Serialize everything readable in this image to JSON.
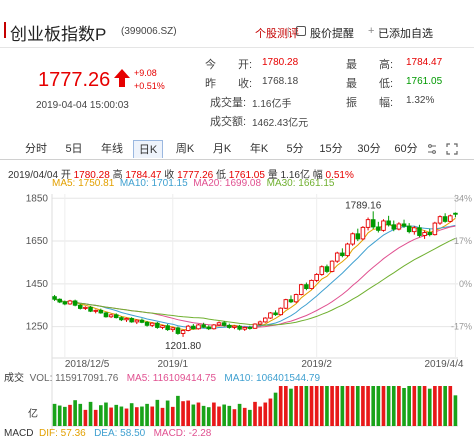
{
  "header": {
    "title": "创业板指数P",
    "code": "(399006.SZ)",
    "tools": {
      "review": "个股测评",
      "alert": "股价提醒",
      "watchlist": "已添加自选"
    }
  },
  "quote": {
    "price": "1777.26",
    "change": "+9.08",
    "change_pct": "+0.51%",
    "datetime": "2019-04-04 15:00:03",
    "fields": {
      "open_label": "今　　开:",
      "open_value": "1780.28",
      "prev_close_label": "昨　　收:",
      "prev_close_value": "1768.18",
      "volume_label": "成交量:",
      "volume_value": "1.16亿手",
      "turnover_label": "成交额:",
      "turnover_value": "1462.43亿元",
      "high_label": "最　　高:",
      "high_value": "1784.47",
      "low_label": "最　　低:",
      "low_value": "1761.05",
      "amplitude_label": "振　　幅:",
      "amplitude_value": "1.32%"
    },
    "colors": {
      "up": "#e60000",
      "down": "#009900"
    }
  },
  "tabs": {
    "items": [
      "分时",
      "5日",
      "年线",
      "日K",
      "周K",
      "月K",
      "年K",
      "5分",
      "15分",
      "30分",
      "60分"
    ],
    "active": "日K"
  },
  "chart_info": {
    "date": "2019/04/04",
    "open_label": "开",
    "open": "1780.28",
    "high_label": "高",
    "high": "1784.47",
    "close_label": "收",
    "close": "1777.26",
    "low_label": "低",
    "low": "1761.05",
    "volume_label": "量",
    "volume": "1.16亿",
    "amplitude_label": "幅",
    "amplitude": "0.51%",
    "ma5": "MA5: 1750.81",
    "ma10": "MA10: 1701.15",
    "ma20": "MA20: 1699.08",
    "ma30": "MA30: 1661.15"
  },
  "volume_info": {
    "label": "成交",
    "vol": "VOL: 115917091.76",
    "ma5": "MA5: 116109414.75",
    "ma10": "MA10: 106401544.79",
    "unit": "亿"
  },
  "macd_info": {
    "label": "MACD",
    "dif": "DIF: 57.36",
    "dea": "DEA: 58.50",
    "macd": "MACD: -2.28"
  },
  "chart_data": {
    "type": "candlestick",
    "y_ticks": [
      "1850",
      "1650",
      "1450",
      "1250"
    ],
    "right_ticks": [
      "34%",
      "17%",
      "0%",
      "-17%"
    ],
    "x_ticks": [
      "2018/12/5",
      "2019/1",
      "2019/2",
      "2019/4/4"
    ],
    "ylim": [
      1150,
      1870
    ],
    "annotations": {
      "high": "1789.16",
      "low": "1201.80"
    },
    "colors": {
      "ma5": "#e2a000",
      "ma10": "#3fa0d0",
      "ma20": "#e05090",
      "ma30": "#70b030"
    },
    "candles": [
      [
        1390,
        1398,
        1370,
        1378
      ],
      [
        1378,
        1382,
        1360,
        1365
      ],
      [
        1365,
        1372,
        1350,
        1356
      ],
      [
        1356,
        1375,
        1352,
        1370
      ],
      [
        1370,
        1376,
        1345,
        1350
      ],
      [
        1350,
        1355,
        1330,
        1335
      ],
      [
        1335,
        1345,
        1328,
        1340
      ],
      [
        1340,
        1346,
        1318,
        1322
      ],
      [
        1322,
        1330,
        1312,
        1326
      ],
      [
        1326,
        1334,
        1310,
        1314
      ],
      [
        1314,
        1318,
        1292,
        1296
      ],
      [
        1296,
        1310,
        1290,
        1305
      ],
      [
        1305,
        1312,
        1288,
        1292
      ],
      [
        1292,
        1298,
        1276,
        1282
      ],
      [
        1282,
        1292,
        1272,
        1288
      ],
      [
        1288,
        1294,
        1268,
        1272
      ],
      [
        1272,
        1284,
        1262,
        1280
      ],
      [
        1280,
        1288,
        1266,
        1270
      ],
      [
        1270,
        1276,
        1250,
        1256
      ],
      [
        1256,
        1270,
        1248,
        1266
      ],
      [
        1266,
        1272,
        1240,
        1246
      ],
      [
        1246,
        1258,
        1238,
        1254
      ],
      [
        1254,
        1262,
        1230,
        1236
      ],
      [
        1236,
        1248,
        1225,
        1244
      ],
      [
        1244,
        1250,
        1212,
        1218
      ],
      [
        1218,
        1236,
        1202,
        1232
      ],
      [
        1232,
        1258,
        1228,
        1252
      ],
      [
        1252,
        1262,
        1236,
        1240
      ],
      [
        1240,
        1262,
        1236,
        1258
      ],
      [
        1258,
        1268,
        1244,
        1248
      ],
      [
        1248,
        1256,
        1234,
        1240
      ],
      [
        1240,
        1262,
        1236,
        1258
      ],
      [
        1258,
        1274,
        1252,
        1268
      ],
      [
        1268,
        1276,
        1250,
        1256
      ],
      [
        1256,
        1264,
        1240,
        1246
      ],
      [
        1246,
        1256,
        1238,
        1252
      ],
      [
        1252,
        1258,
        1232,
        1238
      ],
      [
        1238,
        1250,
        1230,
        1246
      ],
      [
        1246,
        1254,
        1236,
        1242
      ],
      [
        1242,
        1266,
        1240,
        1262
      ],
      [
        1262,
        1278,
        1256,
        1272
      ],
      [
        1272,
        1294,
        1268,
        1290
      ],
      [
        1290,
        1318,
        1286,
        1314
      ],
      [
        1314,
        1326,
        1300,
        1306
      ],
      [
        1306,
        1340,
        1302,
        1336
      ],
      [
        1336,
        1380,
        1332,
        1376
      ],
      [
        1376,
        1396,
        1360,
        1366
      ],
      [
        1366,
        1404,
        1360,
        1400
      ],
      [
        1400,
        1450,
        1396,
        1446
      ],
      [
        1446,
        1456,
        1420,
        1428
      ],
      [
        1428,
        1470,
        1424,
        1466
      ],
      [
        1466,
        1500,
        1458,
        1494
      ],
      [
        1494,
        1536,
        1488,
        1530
      ],
      [
        1530,
        1540,
        1500,
        1508
      ],
      [
        1508,
        1560,
        1504,
        1556
      ],
      [
        1556,
        1600,
        1548,
        1594
      ],
      [
        1594,
        1616,
        1574,
        1582
      ],
      [
        1582,
        1642,
        1576,
        1636
      ],
      [
        1636,
        1690,
        1628,
        1684
      ],
      [
        1684,
        1708,
        1650,
        1660
      ],
      [
        1660,
        1720,
        1654,
        1714
      ],
      [
        1714,
        1760,
        1700,
        1750
      ],
      [
        1750,
        1789,
        1706,
        1716
      ],
      [
        1716,
        1740,
        1690,
        1700
      ],
      [
        1700,
        1752,
        1694,
        1744
      ],
      [
        1744,
        1768,
        1718,
        1726
      ],
      [
        1726,
        1746,
        1696,
        1706
      ],
      [
        1706,
        1738,
        1700,
        1730
      ],
      [
        1730,
        1750,
        1712,
        1720
      ],
      [
        1720,
        1734,
        1686,
        1694
      ],
      [
        1694,
        1720,
        1680,
        1712
      ],
      [
        1712,
        1726,
        1668,
        1676
      ],
      [
        1676,
        1700,
        1660,
        1690
      ],
      [
        1690,
        1708,
        1672,
        1680
      ],
      [
        1680,
        1740,
        1676,
        1734
      ],
      [
        1734,
        1770,
        1726,
        1764
      ],
      [
        1764,
        1780,
        1736,
        1742
      ],
      [
        1742,
        1774,
        1738,
        1768
      ],
      [
        1780,
        1784,
        1761,
        1777
      ]
    ]
  }
}
